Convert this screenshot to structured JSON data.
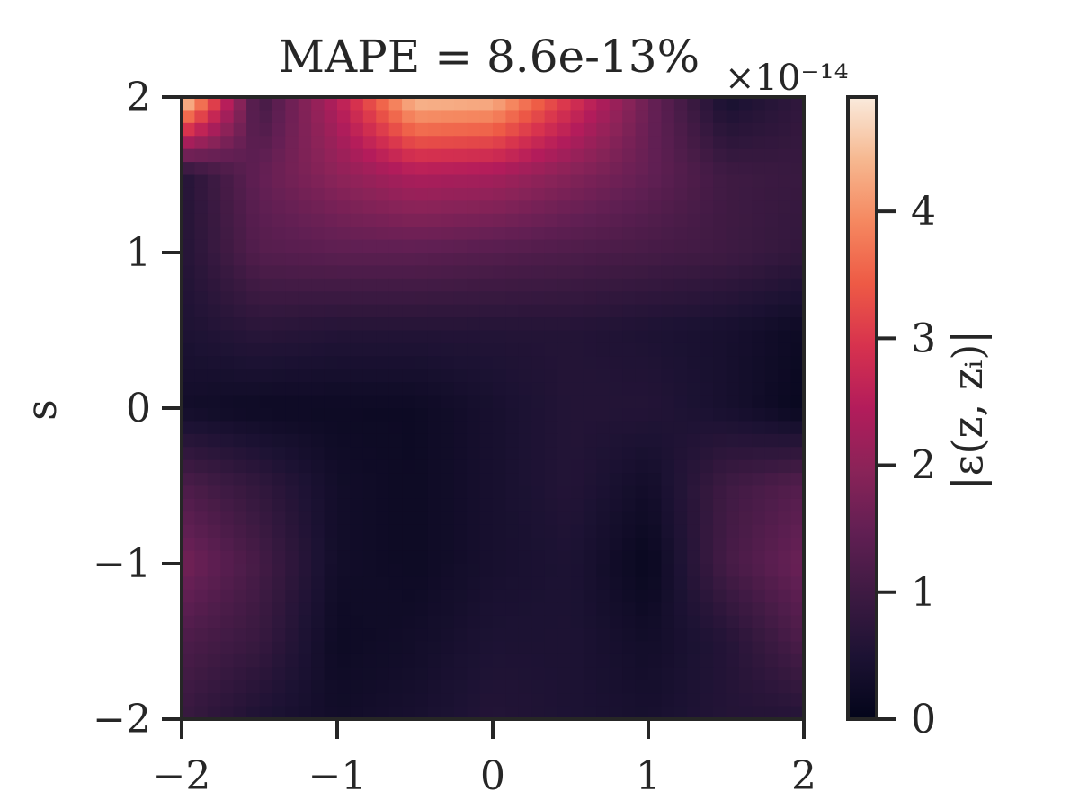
{
  "chart_data": {
    "type": "heatmap",
    "title": "MAPE = 8.6e-13%",
    "xlabel": "",
    "ylabel": "s",
    "xlim": [
      -2,
      2
    ],
    "ylim": [
      -2,
      2
    ],
    "x_ticks": [
      -2,
      -1,
      0,
      1,
      2
    ],
    "y_ticks": [
      -2,
      -1,
      0,
      1,
      2
    ],
    "x_tick_labels": [
      "−2",
      "−1",
      "0",
      "1",
      "2"
    ],
    "y_tick_labels": [
      "−2",
      "−1",
      "0",
      "1",
      "2"
    ],
    "colorbar": {
      "label": "|ε(z, zᵢ)|",
      "offset_text": "×10⁻¹⁴",
      "range": [
        0,
        4.9
      ],
      "ticks": [
        0,
        1,
        2,
        3,
        4
      ],
      "tick_labels": [
        "0",
        "1",
        "2",
        "3",
        "4"
      ],
      "colormap": "rocket"
    },
    "grid": false,
    "x": [
      -2.0,
      -1.5,
      -1.0,
      -0.5,
      0.0,
      0.5,
      1.0,
      1.5,
      2.0
    ],
    "y": [
      2.0,
      1.5,
      1.0,
      0.5,
      0.0,
      -0.5,
      -1.0,
      -1.5,
      -2.0
    ],
    "values": [
      [
        4.9,
        1.0,
        2.5,
        4.5,
        4.4,
        3.0,
        1.6,
        0.4,
        0.8
      ],
      [
        0.6,
        1.5,
        2.0,
        2.4,
        2.3,
        1.9,
        1.5,
        1.0,
        0.9
      ],
      [
        0.6,
        1.3,
        1.4,
        1.4,
        1.3,
        1.2,
        1.1,
        1.0,
        0.8
      ],
      [
        0.5,
        0.7,
        0.6,
        0.6,
        0.6,
        0.6,
        0.5,
        0.4,
        0.2
      ],
      [
        0.3,
        0.2,
        0.2,
        0.2,
        0.4,
        0.6,
        0.6,
        0.4,
        0.1
      ],
      [
        1.2,
        0.8,
        0.3,
        0.2,
        0.4,
        0.6,
        0.3,
        1.0,
        1.3
      ],
      [
        1.7,
        1.1,
        0.3,
        0.2,
        0.4,
        0.5,
        0.1,
        1.1,
        1.6
      ],
      [
        1.2,
        0.9,
        0.2,
        0.3,
        0.5,
        0.5,
        0.3,
        0.6,
        1.2
      ],
      [
        0.9,
        0.5,
        0.3,
        0.4,
        0.6,
        0.5,
        0.4,
        0.6,
        0.6
      ]
    ]
  }
}
